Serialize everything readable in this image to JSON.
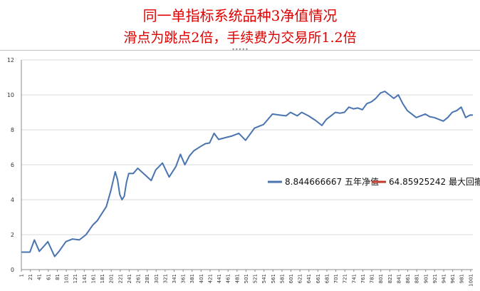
{
  "header": {
    "title": "同一单指标系统品种3净值情况",
    "subtitle": "滑点为跳点2倍，手续费为交易所1.2倍"
  },
  "chart_data": {
    "type": "line",
    "title": "同一单指标系统品种3净值情况",
    "subtitle": "滑点为跳点2倍，手续费为交易所1.2倍",
    "xlabel": "",
    "ylabel": "",
    "ylim": [
      0,
      12
    ],
    "yticks": [
      "0",
      "2",
      "4",
      "6",
      "8",
      "10",
      "12"
    ],
    "grid": true,
    "legend_position": "center-right",
    "x_tick_labels": [
      "1",
      "21",
      "41",
      "61",
      "81",
      "101",
      "121",
      "141",
      "161",
      "181",
      "201",
      "221",
      "241",
      "261",
      "281",
      "301",
      "321",
      "341",
      "361",
      "381",
      "401",
      "421",
      "441",
      "461",
      "481",
      "501",
      "521",
      "541",
      "561",
      "581",
      "601",
      "621",
      "641",
      "661",
      "681",
      "701",
      "721",
      "741",
      "761",
      "781",
      "801",
      "821",
      "841",
      "861",
      "881",
      "901",
      "921",
      "941",
      "961",
      "981",
      "1001"
    ],
    "x_range": [
      1,
      1006
    ],
    "series": [
      {
        "name": "8.844666667 五年净值",
        "color": "#4a74b0",
        "x": [
          1,
          20,
          30,
          41,
          50,
          60,
          75,
          85,
          100,
          115,
          130,
          145,
          160,
          170,
          180,
          190,
          200,
          210,
          215,
          220,
          225,
          230,
          235,
          240,
          250,
          260,
          275,
          290,
          300,
          315,
          330,
          345,
          355,
          365,
          375,
          385,
          400,
          410,
          420,
          430,
          440,
          455,
          470,
          485,
          500,
          520,
          540,
          560,
          575,
          590,
          600,
          615,
          625,
          640,
          655,
          670,
          680,
          690,
          700,
          710,
          720,
          730,
          740,
          750,
          760,
          770,
          780,
          790,
          800,
          810,
          820,
          830,
          840,
          850,
          860,
          870,
          880,
          890,
          900,
          910,
          920,
          930,
          940,
          950,
          960,
          970,
          980,
          990,
          1000,
          1006
        ],
        "values": [
          1.0,
          1.0,
          1.7,
          1.05,
          1.3,
          1.6,
          0.75,
          1.05,
          1.6,
          1.75,
          1.7,
          2.0,
          2.55,
          2.8,
          3.2,
          3.6,
          4.5,
          5.6,
          5.15,
          4.3,
          4.0,
          4.2,
          5.0,
          5.5,
          5.5,
          5.8,
          5.45,
          5.1,
          5.7,
          6.1,
          5.3,
          5.9,
          6.6,
          6.0,
          6.5,
          6.8,
          7.05,
          7.2,
          7.25,
          7.8,
          7.45,
          7.55,
          7.65,
          7.8,
          7.4,
          8.1,
          8.3,
          8.9,
          8.85,
          8.8,
          9.0,
          8.8,
          9.0,
          8.8,
          8.55,
          8.25,
          8.6,
          8.8,
          9.0,
          8.95,
          9.0,
          9.3,
          9.2,
          9.25,
          9.15,
          9.5,
          9.6,
          9.8,
          10.1,
          10.2,
          10.0,
          9.8,
          10.0,
          9.5,
          9.1,
          8.9,
          8.7,
          8.8,
          8.9,
          8.75,
          8.7,
          8.6,
          8.5,
          8.7,
          9.0,
          9.1,
          9.3,
          8.7,
          8.85,
          8.84
        ]
      },
      {
        "name": "64.85925242 最大回撤",
        "color": "#c0392b",
        "x": [],
        "values": []
      }
    ]
  }
}
